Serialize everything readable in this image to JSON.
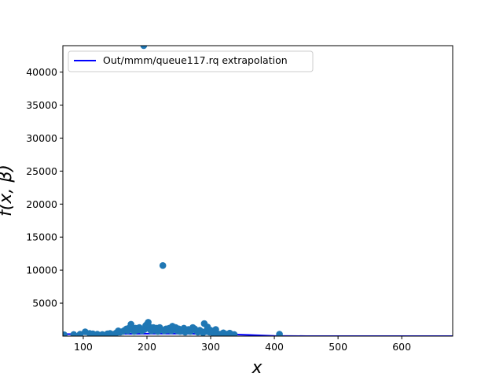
{
  "chart_data": {
    "type": "scatter",
    "title": "",
    "xlabel": "x",
    "ylabel": "f(x, β)",
    "xlim": [
      68,
      680
    ],
    "ylim": [
      0,
      44000
    ],
    "xticks": [
      100,
      200,
      300,
      400,
      500,
      600
    ],
    "yticks": [
      5000,
      10000,
      15000,
      20000,
      25000,
      30000,
      35000,
      40000
    ],
    "grid": false,
    "legend_position": "top-left",
    "scatter_color": "#1f77b4",
    "line_color": "#0000ff",
    "series": [
      {
        "kind": "line",
        "name": "Out/mmm/queue117.rq extrapolation",
        "x": [
          68,
          120,
          170,
          220,
          270,
          320,
          360,
          400,
          450,
          500,
          550,
          600,
          650,
          680
        ],
        "y": [
          300,
          330,
          360,
          380,
          370,
          300,
          180,
          40,
          0,
          0,
          0,
          0,
          0,
          0
        ]
      },
      {
        "kind": "scatter",
        "x": [
          70,
          85,
          95,
          103,
          110,
          115,
          122,
          130,
          138,
          142,
          148,
          152,
          155,
          158,
          162,
          165,
          168,
          170,
          173,
          175,
          177,
          180,
          182,
          185,
          188,
          190,
          192,
          195,
          196,
          198,
          200,
          202,
          204,
          205,
          207,
          210,
          212,
          215,
          217,
          220,
          222,
          225,
          227,
          230,
          232,
          235,
          238,
          240,
          242,
          245,
          248,
          250,
          252,
          255,
          258,
          260,
          262,
          265,
          268,
          270,
          272,
          275,
          278,
          280,
          283,
          285,
          288,
          290,
          292,
          295,
          298,
          300,
          303,
          305,
          308,
          310,
          315,
          320,
          325,
          330,
          337,
          408
        ],
        "y": [
          200,
          250,
          300,
          650,
          400,
          350,
          300,
          250,
          350,
          400,
          300,
          500,
          800,
          600,
          700,
          900,
          1100,
          800,
          1300,
          1800,
          1000,
          700,
          1200,
          900,
          1300,
          1100,
          800,
          44000,
          1000,
          1600,
          1800,
          2100,
          1400,
          1000,
          800,
          1300,
          900,
          1200,
          700,
          1300,
          1000,
          10700,
          800,
          1100,
          900,
          1200,
          800,
          1500,
          1000,
          1300,
          800,
          1100,
          700,
          900,
          1200,
          600,
          800,
          1000,
          700,
          900,
          1300,
          1100,
          800,
          600,
          900,
          700,
          500,
          1900,
          700,
          1400,
          600,
          900,
          500,
          700,
          1000,
          400,
          300,
          500,
          300,
          450,
          250,
          300
        ]
      }
    ]
  }
}
